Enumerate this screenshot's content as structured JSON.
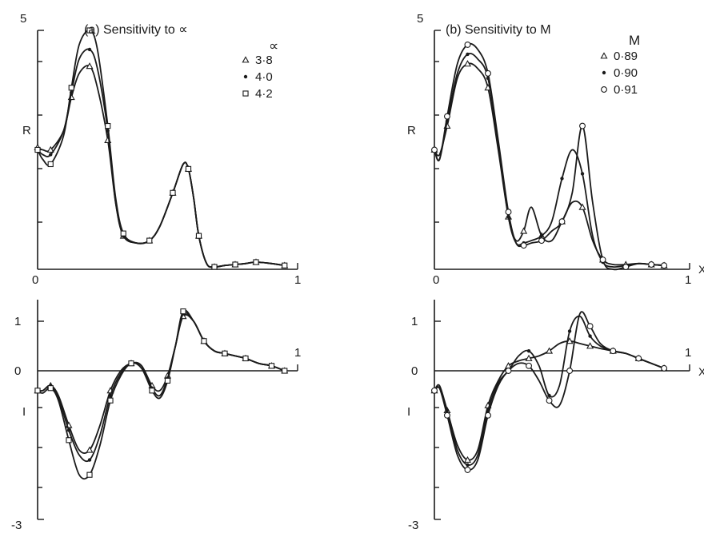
{
  "chart_data": [
    {
      "id": "a-R",
      "type": "line",
      "title": "(a)  Sensitivity to ∝",
      "ylabel": "R",
      "xlim": [
        0,
        1
      ],
      "ylim": [
        0,
        5
      ],
      "x_ticks": [
        0,
        1
      ],
      "x_tick_labels": [
        "0",
        "1"
      ],
      "y_tick_labels": [
        "5"
      ],
      "legend": {
        "title": "∝",
        "placement": "top-right"
      },
      "series": [
        {
          "name": "3·8",
          "marker": "triangle",
          "x": [
            0.0,
            0.02,
            0.05,
            0.1,
            0.13,
            0.16,
            0.2,
            0.23,
            0.27,
            0.3,
            0.33,
            0.38,
            0.43,
            0.47,
            0.52,
            0.56,
            0.58,
            0.6,
            0.62,
            0.65,
            0.68,
            0.72,
            0.76,
            0.8,
            0.84,
            0.9,
            0.95
          ],
          "y": [
            2.55,
            2.5,
            2.5,
            2.9,
            3.6,
            4.1,
            4.25,
            3.8,
            2.7,
            1.4,
            0.7,
            0.55,
            0.6,
            0.9,
            1.6,
            2.2,
            2.1,
            1.5,
            0.7,
            0.12,
            0.05,
            0.08,
            0.1,
            0.12,
            0.15,
            0.12,
            0.08
          ]
        },
        {
          "name": "4·0",
          "marker": "plus",
          "x": [
            0.0,
            0.02,
            0.05,
            0.1,
            0.13,
            0.16,
            0.2,
            0.23,
            0.27,
            0.3,
            0.33,
            0.38,
            0.43,
            0.47,
            0.52,
            0.56,
            0.58,
            0.6,
            0.62,
            0.65,
            0.68,
            0.72,
            0.76,
            0.8,
            0.84,
            0.9,
            0.95
          ],
          "y": [
            2.5,
            2.4,
            2.4,
            2.9,
            3.7,
            4.4,
            4.6,
            4.2,
            2.9,
            1.4,
            0.7,
            0.55,
            0.6,
            0.9,
            1.6,
            2.2,
            2.1,
            1.5,
            0.7,
            0.12,
            0.05,
            0.08,
            0.1,
            0.12,
            0.15,
            0.12,
            0.08
          ]
        },
        {
          "name": "4·2",
          "marker": "square",
          "x": [
            0.0,
            0.02,
            0.05,
            0.1,
            0.13,
            0.16,
            0.2,
            0.23,
            0.27,
            0.3,
            0.33,
            0.38,
            0.43,
            0.47,
            0.52,
            0.56,
            0.58,
            0.6,
            0.62,
            0.65,
            0.68,
            0.72,
            0.76,
            0.8,
            0.84,
            0.9,
            0.95
          ],
          "y": [
            2.5,
            2.3,
            2.2,
            2.8,
            3.8,
            4.7,
            5.0,
            4.6,
            3.0,
            1.5,
            0.75,
            0.55,
            0.6,
            0.9,
            1.6,
            2.2,
            2.1,
            1.5,
            0.7,
            0.12,
            0.05,
            0.08,
            0.1,
            0.12,
            0.15,
            0.12,
            0.08
          ]
        }
      ]
    },
    {
      "id": "a-I",
      "type": "line",
      "ylabel": "I",
      "xlim": [
        0,
        1
      ],
      "ylim": [
        -3,
        1.3
      ],
      "x_ticks": [
        1
      ],
      "x_tick_labels": [
        "1"
      ],
      "y_tick_values": [
        1,
        0,
        -3
      ],
      "y_tick_labels": [
        "1",
        "0",
        "-3"
      ],
      "series": [
        {
          "name": "3·8",
          "marker": "triangle",
          "x": [
            0.0,
            0.02,
            0.05,
            0.08,
            0.12,
            0.16,
            0.2,
            0.24,
            0.28,
            0.32,
            0.36,
            0.4,
            0.44,
            0.47,
            0.5,
            0.53,
            0.56,
            0.6,
            0.64,
            0.68,
            0.72,
            0.76,
            0.8,
            0.85,
            0.9,
            0.95
          ],
          "y": [
            -0.4,
            -0.4,
            -0.3,
            -0.5,
            -1.1,
            -1.6,
            -1.6,
            -1.1,
            -0.4,
            0.0,
            0.15,
            0.1,
            -0.3,
            -0.4,
            -0.1,
            0.5,
            1.1,
            1.0,
            0.6,
            0.4,
            0.35,
            0.3,
            0.25,
            0.15,
            0.1,
            0.0
          ]
        },
        {
          "name": "4·0",
          "marker": "plus",
          "x": [
            0.0,
            0.02,
            0.05,
            0.08,
            0.12,
            0.16,
            0.2,
            0.24,
            0.28,
            0.32,
            0.36,
            0.4,
            0.44,
            0.47,
            0.5,
            0.53,
            0.56,
            0.6,
            0.64,
            0.68,
            0.72,
            0.76,
            0.8,
            0.85,
            0.9,
            0.95
          ],
          "y": [
            -0.4,
            -0.4,
            -0.3,
            -0.55,
            -1.2,
            -1.7,
            -1.8,
            -1.3,
            -0.5,
            -0.05,
            0.15,
            0.1,
            -0.35,
            -0.5,
            -0.15,
            0.5,
            1.15,
            1.0,
            0.6,
            0.4,
            0.35,
            0.3,
            0.25,
            0.15,
            0.1,
            0.0
          ]
        },
        {
          "name": "4·2",
          "marker": "square",
          "x": [
            0.0,
            0.02,
            0.05,
            0.08,
            0.12,
            0.16,
            0.2,
            0.24,
            0.28,
            0.32,
            0.36,
            0.4,
            0.44,
            0.47,
            0.5,
            0.53,
            0.56,
            0.6,
            0.64,
            0.68,
            0.72,
            0.76,
            0.8,
            0.85,
            0.9,
            0.95
          ],
          "y": [
            -0.4,
            -0.45,
            -0.35,
            -0.6,
            -1.4,
            -2.1,
            -2.1,
            -1.5,
            -0.6,
            -0.1,
            0.15,
            0.05,
            -0.4,
            -0.55,
            -0.2,
            0.5,
            1.2,
            1.0,
            0.6,
            0.4,
            0.35,
            0.3,
            0.25,
            0.15,
            0.1,
            0.0
          ]
        }
      ]
    },
    {
      "id": "b-R",
      "type": "line",
      "title": "(b)  Sensitivity to  M",
      "ylabel": "R",
      "xlim": [
        0,
        1
      ],
      "ylim": [
        0,
        5
      ],
      "x_ticks": [
        0,
        1
      ],
      "x_tick_labels": [
        "0",
        "1"
      ],
      "y_tick_labels": [
        "5"
      ],
      "axis_end_label": "X",
      "legend": {
        "title": "M",
        "placement": "top-right"
      },
      "series": [
        {
          "name": "0·89",
          "marker": "triangle",
          "x": [
            0.0,
            0.02,
            0.05,
            0.09,
            0.13,
            0.17,
            0.21,
            0.25,
            0.29,
            0.32,
            0.35,
            0.38,
            0.42,
            0.46,
            0.5,
            0.54,
            0.58,
            0.62,
            0.66,
            0.7,
            0.75,
            0.8,
            0.85,
            0.9
          ],
          "y": [
            2.5,
            2.4,
            3.0,
            4.0,
            4.3,
            4.2,
            3.8,
            2.5,
            1.1,
            0.6,
            0.8,
            1.3,
            0.7,
            0.6,
            1.0,
            1.4,
            1.3,
            0.6,
            0.2,
            0.1,
            0.1,
            0.12,
            0.1,
            0.08
          ]
        },
        {
          "name": "0·90",
          "marker": "plus",
          "x": [
            0.0,
            0.02,
            0.05,
            0.09,
            0.13,
            0.17,
            0.21,
            0.25,
            0.29,
            0.32,
            0.35,
            0.38,
            0.42,
            0.46,
            0.5,
            0.54,
            0.58,
            0.62,
            0.66,
            0.7,
            0.75,
            0.8,
            0.85,
            0.9
          ],
          "y": [
            2.5,
            2.3,
            3.1,
            4.1,
            4.5,
            4.4,
            4.0,
            2.6,
            1.1,
            0.55,
            0.55,
            0.6,
            0.7,
            1.0,
            1.9,
            2.5,
            2.0,
            0.7,
            0.15,
            0.05,
            0.08,
            0.12,
            0.1,
            0.08
          ]
        },
        {
          "name": "0·91",
          "marker": "circle",
          "x": [
            0.0,
            0.02,
            0.05,
            0.09,
            0.13,
            0.17,
            0.21,
            0.25,
            0.29,
            0.32,
            0.35,
            0.38,
            0.42,
            0.46,
            0.5,
            0.54,
            0.58,
            0.62,
            0.66,
            0.7,
            0.75,
            0.8,
            0.85,
            0.9
          ],
          "y": [
            2.5,
            2.3,
            3.2,
            4.3,
            4.7,
            4.6,
            4.1,
            2.7,
            1.2,
            0.55,
            0.5,
            0.55,
            0.6,
            0.8,
            1.0,
            1.6,
            3.0,
            1.4,
            0.2,
            0.0,
            0.05,
            0.12,
            0.1,
            0.08
          ]
        }
      ]
    },
    {
      "id": "b-I",
      "type": "line",
      "ylabel": "I",
      "xlim": [
        0,
        1
      ],
      "ylim": [
        -3,
        1.3
      ],
      "x_ticks": [
        1
      ],
      "x_tick_labels": [
        "1"
      ],
      "y_tick_values": [
        1,
        0,
        -3
      ],
      "y_tick_labels": [
        "1",
        "0",
        "-3"
      ],
      "axis_end_label": "X",
      "series": [
        {
          "name": "0·89",
          "marker": "triangle",
          "x": [
            0.0,
            0.02,
            0.05,
            0.09,
            0.13,
            0.17,
            0.21,
            0.25,
            0.29,
            0.33,
            0.37,
            0.41,
            0.45,
            0.49,
            0.53,
            0.57,
            0.61,
            0.65,
            0.7,
            0.75,
            0.8,
            0.85,
            0.9
          ],
          "y": [
            -0.4,
            -0.3,
            -0.8,
            -1.5,
            -1.8,
            -1.6,
            -0.7,
            -0.2,
            0.1,
            0.2,
            0.25,
            0.3,
            0.4,
            0.55,
            0.6,
            0.55,
            0.5,
            0.45,
            0.4,
            0.35,
            0.25,
            0.15,
            0.05
          ]
        },
        {
          "name": "0·90",
          "marker": "plus",
          "x": [
            0.0,
            0.02,
            0.05,
            0.09,
            0.13,
            0.17,
            0.21,
            0.25,
            0.29,
            0.33,
            0.37,
            0.41,
            0.45,
            0.49,
            0.53,
            0.57,
            0.61,
            0.65,
            0.7,
            0.75,
            0.8,
            0.85,
            0.9
          ],
          "y": [
            -0.4,
            -0.35,
            -0.8,
            -1.6,
            -1.9,
            -1.7,
            -0.8,
            -0.25,
            0.0,
            0.3,
            0.4,
            0.1,
            -0.5,
            -0.3,
            0.8,
            1.1,
            0.7,
            0.5,
            0.4,
            0.35,
            0.25,
            0.15,
            0.05
          ]
        },
        {
          "name": "0·91",
          "marker": "circle",
          "x": [
            0.0,
            0.02,
            0.05,
            0.09,
            0.13,
            0.17,
            0.21,
            0.25,
            0.29,
            0.33,
            0.37,
            0.41,
            0.45,
            0.49,
            0.53,
            0.57,
            0.61,
            0.65,
            0.7,
            0.75,
            0.8,
            0.85,
            0.9
          ],
          "y": [
            -0.4,
            -0.35,
            -0.9,
            -1.7,
            -2.0,
            -1.8,
            -0.9,
            -0.3,
            0.0,
            0.15,
            0.1,
            -0.2,
            -0.6,
            -0.7,
            0.0,
            1.15,
            0.9,
            0.55,
            0.4,
            0.35,
            0.25,
            0.15,
            0.05
          ]
        }
      ]
    }
  ]
}
